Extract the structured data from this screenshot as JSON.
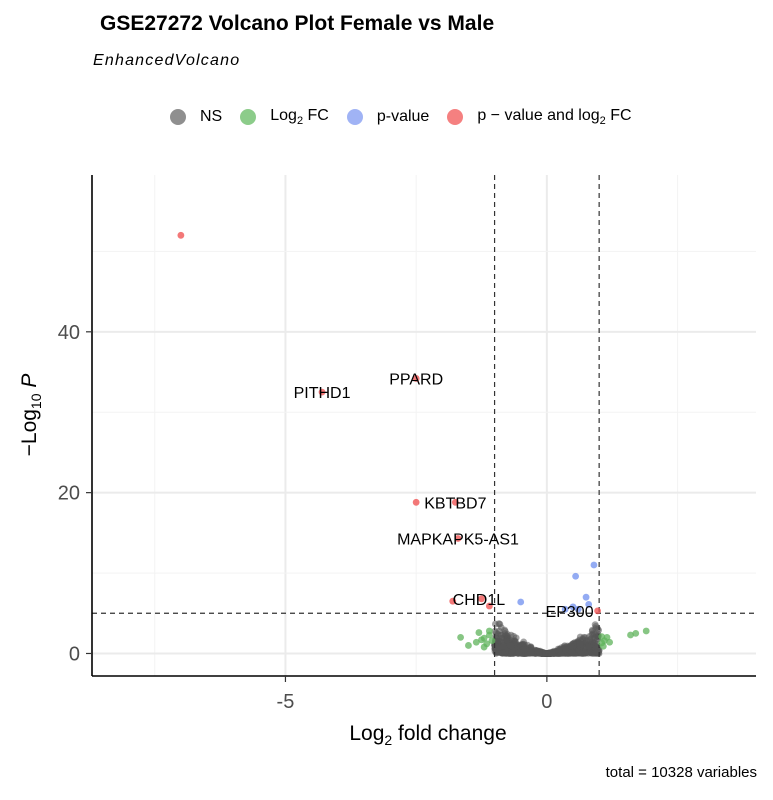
{
  "title": "GSE27272 Volcano Plot Female vs Male",
  "subtitle": "EnhancedVolcano",
  "caption": "total = 10328 variables",
  "legend": [
    {
      "key": "ns",
      "text": "NS",
      "color": "#808080"
    },
    {
      "key": "fc",
      "text": "Log",
      "sub": "2",
      "suffix": " FC",
      "color": "#69b866"
    },
    {
      "key": "p",
      "text": "p-value",
      "color": "#7b96f0"
    },
    {
      "key": "both",
      "text": "p − value and log",
      "sub": "2",
      "suffix": " FC",
      "color": "#f05c5c"
    }
  ],
  "chart_data": {
    "type": "scatter",
    "title": "GSE27272 Volcano Plot Female vs Male",
    "subtitle": "EnhancedVolcano",
    "xlabel": "Log2 fold change",
    "ylabel": "−Log10 P",
    "xlim": [
      -8.7,
      4.0
    ],
    "ylim": [
      -2.8,
      59.5
    ],
    "xticks": [
      -5,
      0
    ],
    "yticks": [
      0,
      20,
      40
    ],
    "grid": true,
    "legend_position": "top",
    "thresholds": {
      "fc": 1.0,
      "neg_log10_p": 5.0
    },
    "colors": {
      "NS": "#555555",
      "Log2 FC": "#5fb35b",
      "p-value": "#6f8fef",
      "both": "#ef4b4b"
    },
    "labeled_points": [
      {
        "label": "PITHD1",
        "x": -4.3,
        "y": 32.5
      },
      {
        "label": "PPARD",
        "x": -2.5,
        "y": 34.2
      },
      {
        "label": "KBTBD7",
        "x": -1.75,
        "y": 18.8
      },
      {
        "label": "MAPKAPK5-AS1",
        "x": -1.7,
        "y": 14.3
      },
      {
        "label": "CHD1L",
        "x": -1.3,
        "y": 6.8
      },
      {
        "label": "EP300",
        "x": 0.97,
        "y": 5.3
      }
    ],
    "series": [
      {
        "name": "p − value and log2 FC",
        "points": [
          [
            -7.0,
            52.0
          ],
          [
            -4.3,
            32.5
          ],
          [
            -2.5,
            34.2
          ],
          [
            -2.5,
            18.8
          ],
          [
            -1.75,
            18.8
          ],
          [
            -1.7,
            14.3
          ],
          [
            -1.8,
            6.5
          ],
          [
            -1.25,
            6.8
          ],
          [
            -1.1,
            5.9
          ],
          [
            0.97,
            5.3
          ]
        ]
      },
      {
        "name": "p-value",
        "points": [
          [
            0.9,
            11.0
          ],
          [
            0.55,
            9.6
          ],
          [
            0.75,
            7.0
          ],
          [
            -0.5,
            6.4
          ],
          [
            0.5,
            5.8
          ],
          [
            0.6,
            5.5
          ],
          [
            0.8,
            6.1
          ],
          [
            0.35,
            5.5
          ]
        ]
      },
      {
        "name": "Log2 FC",
        "points": [
          [
            1.6,
            2.3
          ],
          [
            1.7,
            2.5
          ],
          [
            1.9,
            2.8
          ],
          [
            1.1,
            1.6
          ],
          [
            1.15,
            2.0
          ],
          [
            -1.65,
            2.0
          ],
          [
            -1.3,
            2.6
          ],
          [
            -1.2,
            1.9
          ],
          [
            -1.1,
            2.3
          ],
          [
            -1.05,
            1.6
          ],
          [
            -1.15,
            1.2
          ],
          [
            -1.25,
            1.7
          ],
          [
            -1.35,
            1.4
          ],
          [
            -1.1,
            2.8
          ],
          [
            -1.5,
            1.0
          ],
          [
            -1.2,
            0.8
          ],
          [
            1.05,
            1.3
          ],
          [
            1.05,
            2.1
          ],
          [
            1.08,
            0.9
          ],
          [
            1.2,
            1.4
          ]
        ]
      }
    ]
  }
}
